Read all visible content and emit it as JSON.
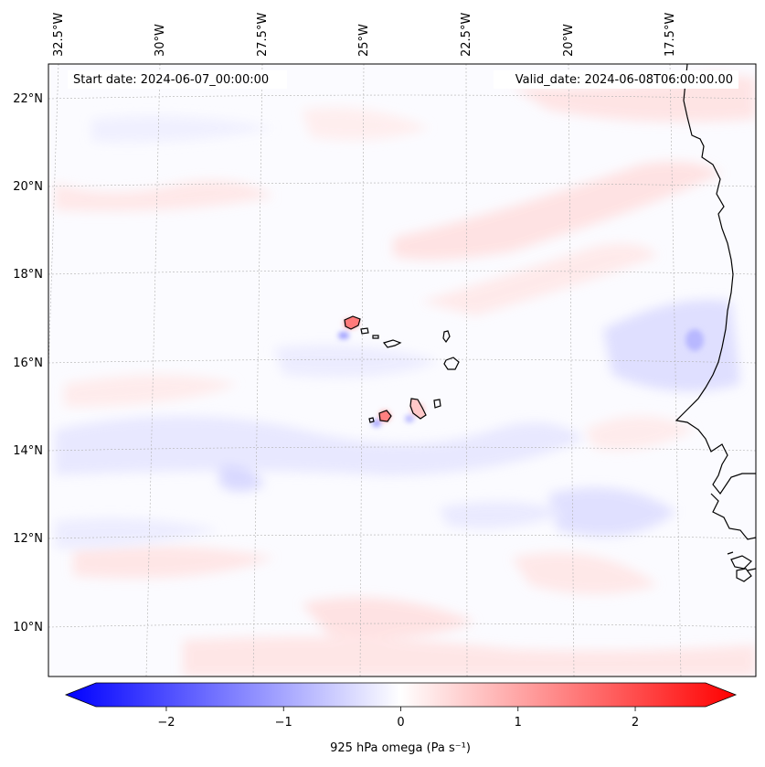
{
  "map": {
    "start_label": "Start date: 2024-06-07_00:00:00",
    "valid_label": "Valid_date: 2024-06-08T06:00:00.00",
    "lon_ticks": [
      "32.5°W",
      "30°W",
      "27.5°W",
      "25°W",
      "22.5°W",
      "20°W",
      "17.5°W"
    ],
    "lat_ticks": [
      "22°N",
      "20°N",
      "18°N",
      "16°N",
      "14°N",
      "12°N",
      "10°N"
    ],
    "colors": {
      "negative": "#0000ff",
      "neutral": "#ffffff",
      "positive": "#ff0000",
      "coast": "#000000",
      "grid": "#b0b0b0"
    }
  },
  "colorbar": {
    "label": "925 hPa omega (Pa s⁻¹)",
    "ticks": [
      "−2",
      "−1",
      "0",
      "1",
      "2"
    ],
    "tick_values": [
      -2,
      -1,
      0,
      1,
      2
    ],
    "min": -2.6,
    "max": 2.6
  }
}
